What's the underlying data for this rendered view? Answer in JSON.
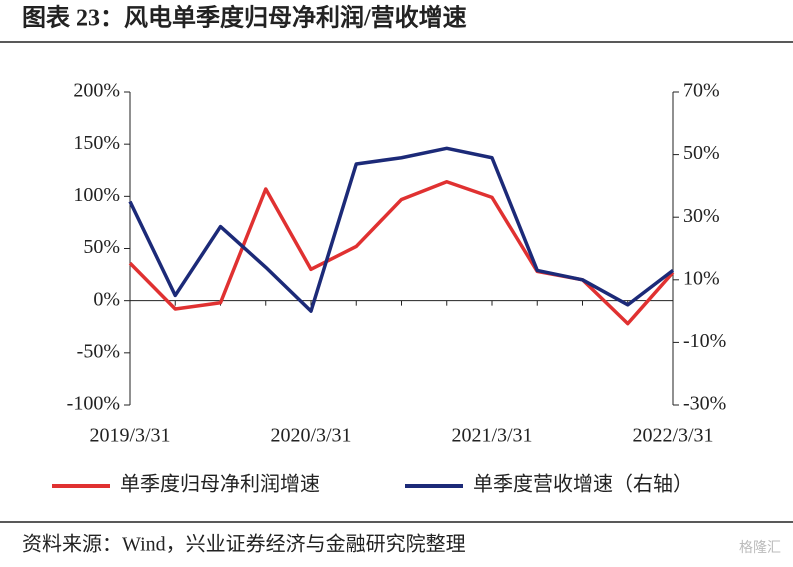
{
  "chart_data": {
    "type": "line",
    "title": "图表 23：风电单季度归母净利润/营收增速",
    "categories": [
      "2019/3/31",
      null,
      null,
      null,
      "2020/3/31",
      null,
      null,
      null,
      "2021/3/31",
      null,
      null,
      null,
      "2022/3/31"
    ],
    "series": [
      {
        "name": "单季度归母净利润增速",
        "color": "#e03131",
        "values": [
          36,
          -8,
          -2,
          107,
          30,
          52,
          97,
          114,
          99,
          28,
          20,
          -22,
          27
        ]
      },
      {
        "name": "单季度营收增速（右轴）",
        "color": "#1c2a78",
        "axis": "y2",
        "values": [
          35,
          5,
          27,
          14,
          0,
          47,
          49,
          52,
          49,
          13,
          10,
          2,
          13
        ]
      }
    ],
    "ylim": [
      -100,
      200
    ],
    "yticks": [
      {
        "value": -100,
        "label": "-100%"
      },
      {
        "value": -50,
        "label": "-50%"
      },
      {
        "value": 0,
        "label": "0%"
      },
      {
        "value": 50,
        "label": "50%"
      },
      {
        "value": 100,
        "label": "100%"
      },
      {
        "value": 150,
        "label": "150%"
      },
      {
        "value": 200,
        "label": "200%"
      }
    ],
    "y2lim": [
      -30,
      70
    ],
    "y2ticks": [
      {
        "value": -30,
        "label": "-30%"
      },
      {
        "value": -10,
        "label": "-10%"
      },
      {
        "value": 10,
        "label": "10%"
      },
      {
        "value": 30,
        "label": "30%"
      },
      {
        "value": 50,
        "label": "50%"
      },
      {
        "value": 70,
        "label": "70%"
      }
    ],
    "source": "资料来源：Wind，兴业证券经济与金融研究院整理",
    "watermark": "格隆汇"
  }
}
